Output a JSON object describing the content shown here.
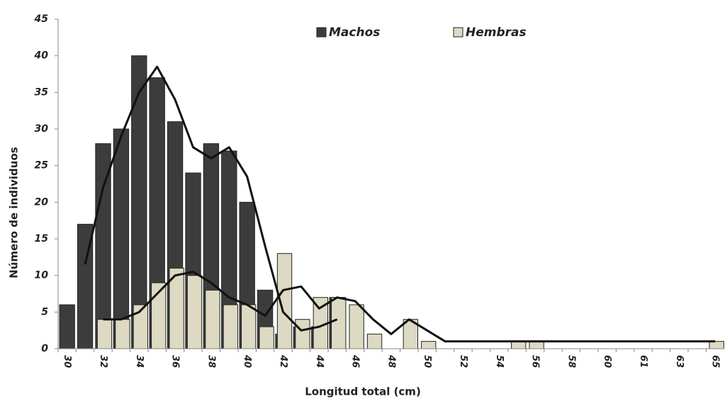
{
  "chart_data": {
    "type": "bar",
    "xlabel": "Longitud total (cm)",
    "ylabel": "Número de individuos",
    "categories": [
      "30",
      null,
      "32",
      null,
      "34",
      null,
      "36",
      null,
      "38",
      null,
      "40",
      null,
      "42",
      null,
      "44",
      null,
      "46",
      null,
      "48",
      null,
      "50",
      null,
      "52",
      null,
      "54",
      null,
      "56",
      null,
      "58",
      null,
      "60",
      null,
      "61",
      null,
      "63",
      null,
      "65"
    ],
    "series": [
      {
        "name": "Machos",
        "color": "#3c3c3c",
        "values": [
          6,
          17,
          28,
          30,
          40,
          37,
          31,
          24,
          28,
          27,
          20,
          8,
          2,
          3,
          3,
          7,
          0,
          0,
          0,
          0,
          0,
          0,
          0,
          0,
          0,
          0,
          0,
          0,
          0,
          0,
          0,
          0,
          0,
          0,
          0,
          0,
          0
        ]
      },
      {
        "name": "Hembras",
        "color": "#ddd9c3",
        "values": [
          0,
          0,
          4,
          4,
          6,
          9,
          11,
          10,
          8,
          6,
          6,
          3,
          13,
          4,
          7,
          7,
          6,
          2,
          0,
          4,
          1,
          0,
          0,
          0,
          0,
          1,
          1,
          0,
          0,
          0,
          0,
          0,
          0,
          0,
          0,
          0,
          1
        ]
      }
    ],
    "trendlines": [
      {
        "color": "#111111",
        "values": [
          null,
          11.5,
          22,
          29,
          35,
          38.5,
          34,
          27.5,
          26,
          27.5,
          23.5,
          14,
          5,
          2.5,
          3,
          4,
          null,
          null,
          null,
          null,
          null,
          null,
          null,
          null,
          null,
          null,
          null,
          null,
          null,
          null,
          null,
          null,
          null,
          null,
          null,
          null,
          null
        ]
      },
      {
        "color": "#111111",
        "values": [
          null,
          null,
          4,
          4,
          5,
          7.5,
          10,
          10.5,
          9,
          7,
          6,
          4.5,
          8,
          8.5,
          5.5,
          7,
          6.5,
          4,
          2,
          4,
          2.5,
          1,
          1,
          1,
          1,
          1,
          1,
          1,
          1,
          1,
          1,
          1,
          1,
          1,
          1,
          1,
          1
        ]
      }
    ],
    "ylim": [
      0,
      45
    ],
    "yticks": [
      0,
      5,
      10,
      15,
      20,
      25,
      30,
      35,
      40,
      45
    ],
    "legend": "top"
  }
}
